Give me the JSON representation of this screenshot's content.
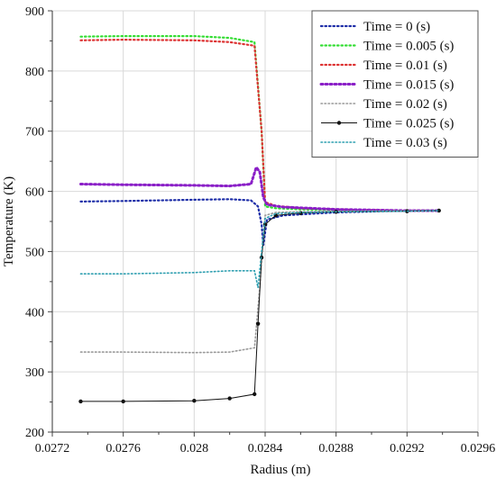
{
  "chart_data": {
    "type": "line",
    "title": "",
    "xlabel": "Radius (m)",
    "ylabel": "Temperature (K)",
    "xlim": [
      0.0272,
      0.0296
    ],
    "ylim": [
      200,
      900
    ],
    "xticks": [
      "0.0272",
      "0.0276",
      "0.028",
      "0.0284",
      "0.0288",
      "0.0292",
      "0.0296"
    ],
    "xtick_values": [
      0.0272,
      0.0276,
      0.028,
      0.0284,
      0.0288,
      0.0292,
      0.0296
    ],
    "yticks": [
      "200",
      "300",
      "400",
      "500",
      "600",
      "700",
      "800",
      "900"
    ],
    "ytick_values": [
      200,
      300,
      400,
      500,
      600,
      700,
      800,
      900
    ],
    "grid": true,
    "legend_position": "top-right",
    "series": [
      {
        "name": "Time = 0 (s)",
        "color": "#1f2fa8",
        "style": "dotted",
        "x": [
          0.02736,
          0.0276,
          0.028,
          0.0282,
          0.02832,
          0.02836,
          0.02838,
          0.02839,
          0.02841,
          0.0285,
          0.0288,
          0.0292,
          0.02938
        ],
        "y": [
          583,
          584,
          586,
          587,
          585,
          575,
          545,
          510,
          553,
          560,
          565,
          568,
          568
        ]
      },
      {
        "name": "Time = 0.005 (s)",
        "color": "#33dd33",
        "style": "dotted",
        "x": [
          0.02736,
          0.0276,
          0.028,
          0.0282,
          0.02834,
          0.02838,
          0.0284,
          0.02846,
          0.0286,
          0.0288,
          0.0292,
          0.02938
        ],
        "y": [
          857,
          858,
          858,
          855,
          848,
          700,
          575,
          572,
          570,
          569,
          568,
          568
        ]
      },
      {
        "name": "Time = 0.01 (s)",
        "color": "#dd3333",
        "style": "dotted",
        "x": [
          0.02736,
          0.0276,
          0.028,
          0.0282,
          0.02834,
          0.02838,
          0.0284,
          0.02846,
          0.0286,
          0.0288,
          0.0292,
          0.02938
        ],
        "y": [
          851,
          852,
          851,
          848,
          842,
          700,
          582,
          576,
          572,
          570,
          568,
          568
        ]
      },
      {
        "name": "Time = 0.015 (s)",
        "color": "#8a1fc7",
        "style": "dotted-thick",
        "x": [
          0.02736,
          0.0276,
          0.028,
          0.0282,
          0.02832,
          0.02835,
          0.02837,
          0.02839,
          0.02841,
          0.0285,
          0.0288,
          0.0292,
          0.02938
        ],
        "y": [
          612,
          611,
          610,
          609,
          612,
          640,
          632,
          590,
          578,
          574,
          570,
          568,
          568
        ]
      },
      {
        "name": "Time = 0.02 (s)",
        "color": "#999999",
        "style": "small-markers",
        "x": [
          0.02736,
          0.0276,
          0.028,
          0.0282,
          0.02834,
          0.02837,
          0.02839,
          0.0284,
          0.02846,
          0.0286,
          0.0288,
          0.0292,
          0.02938
        ],
        "y": [
          333,
          333,
          332,
          333,
          340,
          440,
          530,
          560,
          565,
          566,
          567,
          568,
          568
        ]
      },
      {
        "name": "Time = 0.025 (s)",
        "color": "#111111",
        "style": "line-markers",
        "x": [
          0.02736,
          0.0276,
          0.028,
          0.0282,
          0.02834,
          0.02836,
          0.02838,
          0.0284,
          0.02846,
          0.0286,
          0.0288,
          0.0292,
          0.02938
        ],
        "y": [
          251,
          251,
          252,
          256,
          263,
          380,
          490,
          545,
          560,
          564,
          566,
          567,
          568
        ]
      },
      {
        "name": "Time = 0.03 (s)",
        "color": "#2f9fb0",
        "style": "small-markers",
        "x": [
          0.02736,
          0.0276,
          0.028,
          0.0282,
          0.02834,
          0.02836,
          0.02838,
          0.0284,
          0.02846,
          0.0286,
          0.0288,
          0.0292,
          0.02938
        ],
        "y": [
          463,
          463,
          465,
          468,
          468,
          440,
          500,
          555,
          563,
          565,
          566,
          567,
          568
        ]
      }
    ]
  }
}
